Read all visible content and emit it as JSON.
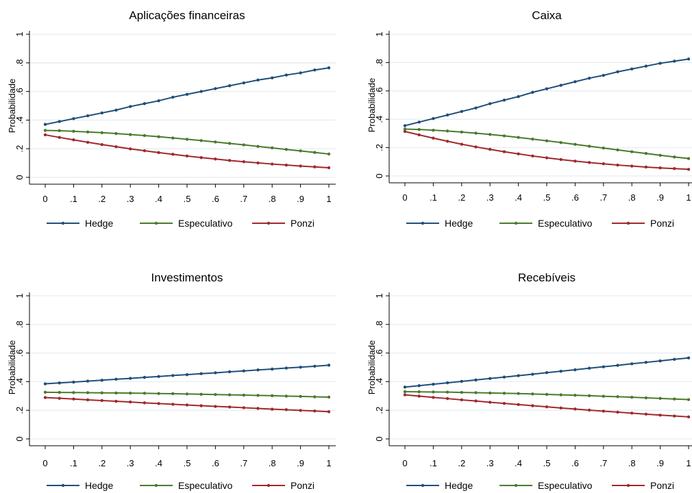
{
  "figure": {
    "series_colors": {
      "Hedge": "#1f4e79",
      "Especulativo": "#4a7a2c",
      "Ponzi": "#a0282c"
    },
    "legend": [
      "Hedge",
      "Especulativo",
      "Ponzi"
    ],
    "x_ticks": [
      "0",
      ".1",
      ".2",
      ".3",
      ".4",
      ".5",
      ".6",
      ".7",
      ".8",
      ".9",
      "1"
    ],
    "y_ticks": [
      "0",
      ".2",
      ".4",
      ".6",
      ".8",
      "1"
    ]
  },
  "chart_data": [
    {
      "type": "line",
      "title": "Aplicações financeiras",
      "xlabel": "",
      "ylabel": "Probabilidade",
      "xlim": [
        0,
        1
      ],
      "ylim": [
        0,
        1
      ],
      "grid": true,
      "legend_position": "bottom",
      "x": [
        0,
        0.05,
        0.1,
        0.15,
        0.2,
        0.25,
        0.3,
        0.35,
        0.4,
        0.45,
        0.5,
        0.55,
        0.6,
        0.65,
        0.7,
        0.75,
        0.8,
        0.85,
        0.9,
        0.95,
        1
      ],
      "series": [
        {
          "name": "Hedge",
          "values": [
            0.37,
            0.39,
            0.41,
            0.43,
            0.45,
            0.47,
            0.495,
            0.515,
            0.535,
            0.56,
            0.58,
            0.6,
            0.62,
            0.64,
            0.66,
            0.68,
            0.695,
            0.715,
            0.73,
            0.75,
            0.765
          ]
        },
        {
          "name": "Especulativo",
          "values": [
            0.328,
            0.326,
            0.322,
            0.317,
            0.312,
            0.306,
            0.299,
            0.292,
            0.284,
            0.275,
            0.266,
            0.257,
            0.247,
            0.237,
            0.227,
            0.216,
            0.206,
            0.195,
            0.185,
            0.174,
            0.163
          ]
        },
        {
          "name": "Ponzi",
          "values": [
            0.297,
            0.279,
            0.262,
            0.245,
            0.229,
            0.214,
            0.199,
            0.186,
            0.173,
            0.161,
            0.149,
            0.138,
            0.128,
            0.118,
            0.109,
            0.101,
            0.093,
            0.086,
            0.079,
            0.073,
            0.067
          ]
        }
      ]
    },
    {
      "type": "line",
      "title": "Caixa",
      "xlabel": "",
      "ylabel": "Probabilidade",
      "xlim": [
        0,
        1
      ],
      "ylim": [
        0,
        1
      ],
      "grid": true,
      "legend_position": "bottom",
      "x": [
        0,
        0.05,
        0.1,
        0.15,
        0.2,
        0.25,
        0.3,
        0.35,
        0.4,
        0.45,
        0.5,
        0.55,
        0.6,
        0.65,
        0.7,
        0.75,
        0.8,
        0.85,
        0.9,
        0.95,
        1
      ],
      "series": [
        {
          "name": "Hedge",
          "values": [
            0.355,
            0.38,
            0.405,
            0.43,
            0.455,
            0.48,
            0.51,
            0.535,
            0.56,
            0.59,
            0.615,
            0.64,
            0.665,
            0.69,
            0.71,
            0.735,
            0.755,
            0.775,
            0.795,
            0.81,
            0.825
          ]
        },
        {
          "name": "Especulativo",
          "values": [
            0.331,
            0.328,
            0.323,
            0.317,
            0.31,
            0.302,
            0.293,
            0.283,
            0.272,
            0.26,
            0.248,
            0.236,
            0.223,
            0.21,
            0.197,
            0.184,
            0.171,
            0.159,
            0.146,
            0.134,
            0.123
          ]
        },
        {
          "name": "Ponzi",
          "values": [
            0.314,
            0.29,
            0.267,
            0.245,
            0.224,
            0.205,
            0.188,
            0.171,
            0.156,
            0.141,
            0.128,
            0.116,
            0.105,
            0.095,
            0.086,
            0.077,
            0.07,
            0.063,
            0.057,
            0.052,
            0.047
          ]
        }
      ]
    },
    {
      "type": "line",
      "title": "Investimentos",
      "xlabel": "",
      "ylabel": "Probabilidade",
      "xlim": [
        0,
        1
      ],
      "ylim": [
        0,
        1
      ],
      "grid": true,
      "legend_position": "bottom",
      "x": [
        0,
        0.05,
        0.1,
        0.15,
        0.2,
        0.25,
        0.3,
        0.35,
        0.4,
        0.45,
        0.5,
        0.55,
        0.6,
        0.65,
        0.7,
        0.75,
        0.8,
        0.85,
        0.9,
        0.95,
        1
      ],
      "series": [
        {
          "name": "Hedge",
          "values": [
            0.385,
            0.391,
            0.397,
            0.404,
            0.41,
            0.417,
            0.423,
            0.43,
            0.436,
            0.443,
            0.449,
            0.456,
            0.462,
            0.469,
            0.475,
            0.482,
            0.488,
            0.495,
            0.501,
            0.508,
            0.515
          ]
        },
        {
          "name": "Especulativo",
          "values": [
            0.326,
            0.325,
            0.324,
            0.323,
            0.322,
            0.321,
            0.32,
            0.319,
            0.317,
            0.316,
            0.314,
            0.312,
            0.31,
            0.308,
            0.306,
            0.304,
            0.302,
            0.299,
            0.297,
            0.294,
            0.292
          ]
        },
        {
          "name": "Ponzi",
          "values": [
            0.289,
            0.284,
            0.279,
            0.273,
            0.268,
            0.263,
            0.258,
            0.252,
            0.247,
            0.242,
            0.237,
            0.232,
            0.227,
            0.223,
            0.218,
            0.213,
            0.208,
            0.204,
            0.199,
            0.195,
            0.19
          ]
        }
      ]
    },
    {
      "type": "line",
      "title": "Recebíveis",
      "xlabel": "",
      "ylabel": "Probabilidade",
      "xlim": [
        0,
        1
      ],
      "ylim": [
        0,
        1
      ],
      "grid": true,
      "legend_position": "bottom",
      "x": [
        0,
        0.05,
        0.1,
        0.15,
        0.2,
        0.25,
        0.3,
        0.35,
        0.4,
        0.45,
        0.5,
        0.55,
        0.6,
        0.65,
        0.7,
        0.75,
        0.8,
        0.85,
        0.9,
        0.95,
        1
      ],
      "series": [
        {
          "name": "Hedge",
          "values": [
            0.362,
            0.372,
            0.382,
            0.392,
            0.402,
            0.412,
            0.422,
            0.432,
            0.442,
            0.452,
            0.463,
            0.473,
            0.483,
            0.494,
            0.504,
            0.514,
            0.525,
            0.535,
            0.545,
            0.556,
            0.566
          ]
        },
        {
          "name": "Especulativo",
          "values": [
            0.33,
            0.329,
            0.328,
            0.327,
            0.325,
            0.323,
            0.321,
            0.319,
            0.317,
            0.314,
            0.311,
            0.308,
            0.305,
            0.302,
            0.298,
            0.295,
            0.291,
            0.287,
            0.283,
            0.279,
            0.275
          ]
        },
        {
          "name": "Ponzi",
          "values": [
            0.308,
            0.299,
            0.29,
            0.282,
            0.273,
            0.265,
            0.256,
            0.248,
            0.24,
            0.232,
            0.224,
            0.216,
            0.209,
            0.201,
            0.194,
            0.187,
            0.18,
            0.173,
            0.166,
            0.16,
            0.154
          ]
        }
      ]
    }
  ]
}
